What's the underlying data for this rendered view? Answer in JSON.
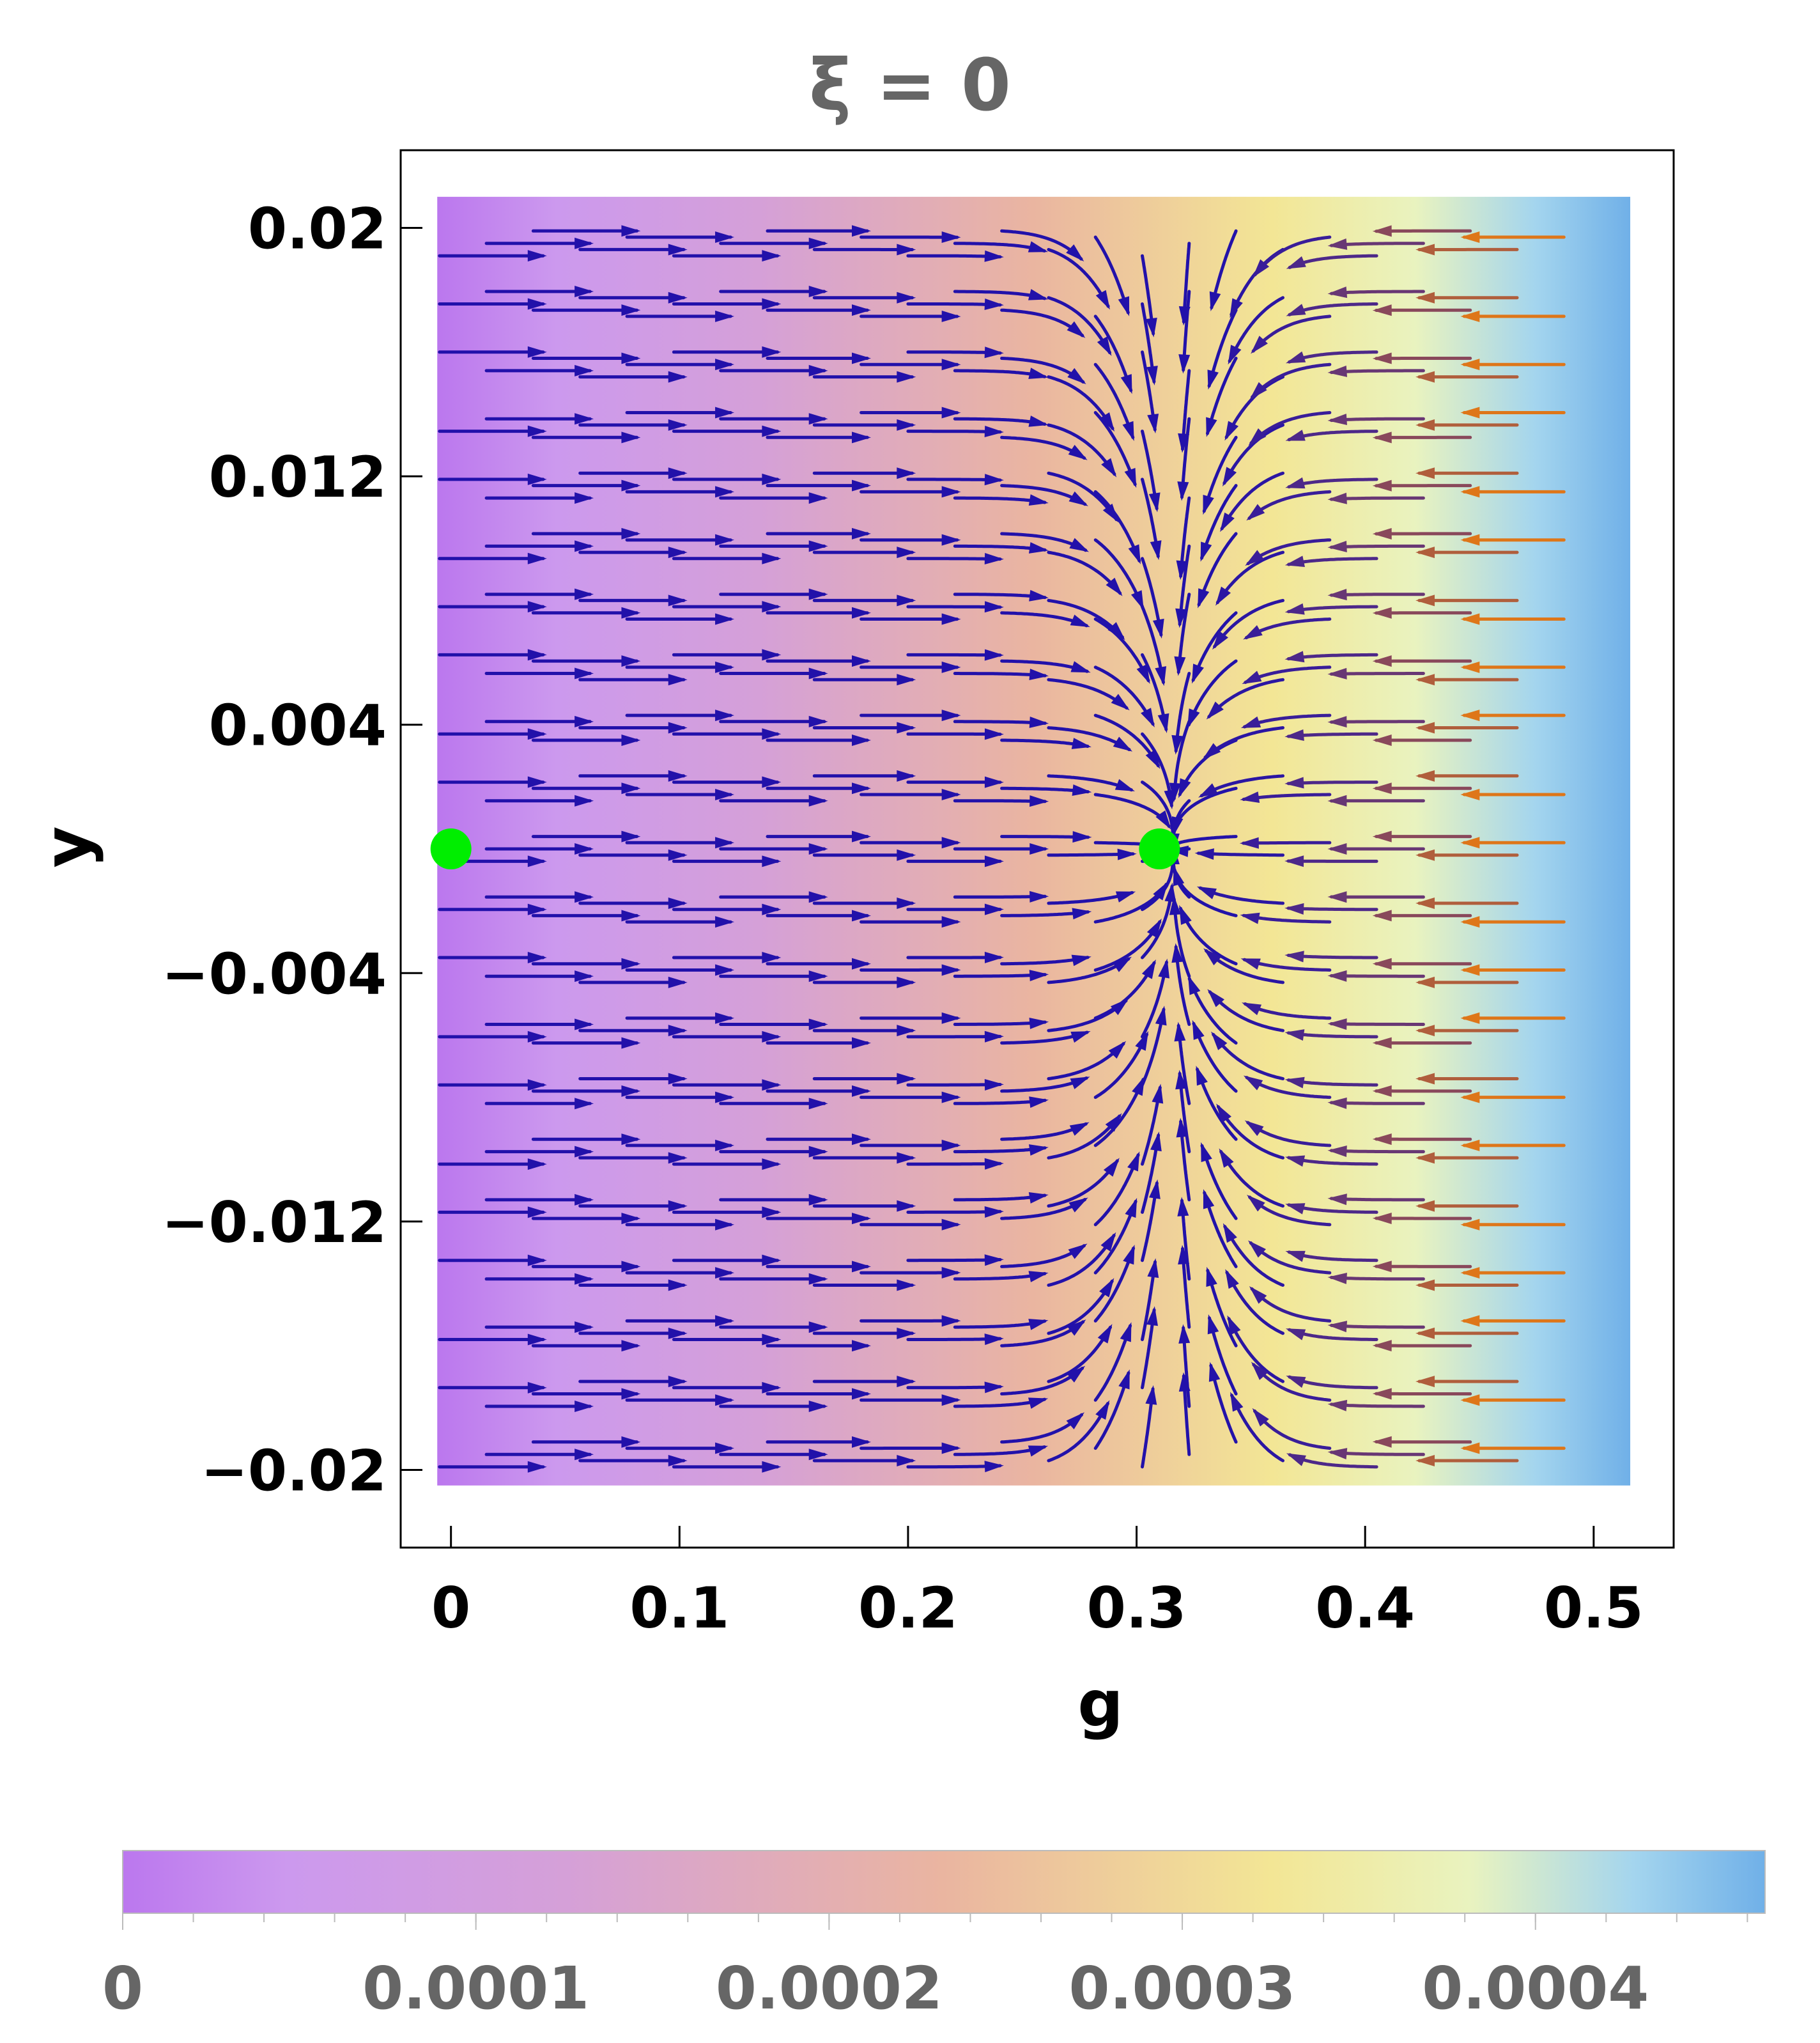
{
  "chart_data": {
    "type": "streamplot",
    "title": "ξ = 0",
    "xlabel": "g",
    "ylabel": "y",
    "xlim": [
      -0.022,
      0.535
    ],
    "ylim": [
      -0.0225,
      0.0225
    ],
    "data_region": {
      "g": [
        -0.006,
        0.516
      ],
      "y": [
        -0.0205,
        0.021
      ]
    },
    "xticks": [
      0,
      0.1,
      0.2,
      0.3,
      0.4,
      0.5
    ],
    "xtick_labels": [
      "0",
      "0.1",
      "0.2",
      "0.3",
      "0.4",
      "0.5"
    ],
    "yticks": [
      0.02,
      0.012,
      0.004,
      -0.004,
      -0.012,
      -0.02
    ],
    "ytick_labels": [
      "0.02",
      "0.012",
      "0.004",
      "−0.004",
      "−0.012",
      "−0.02"
    ],
    "grid": false,
    "fixed_points": [
      {
        "g": 0,
        "y": 0,
        "color": "#00ee00"
      },
      {
        "g": 0.31,
        "y": 0,
        "color": "#00ee00"
      }
    ],
    "flow_attractor_g": 0.316,
    "background_colormap": {
      "stops": [
        [
          0.0,
          "#bb77ee"
        ],
        [
          0.1,
          "#cc99ee"
        ],
        [
          0.27,
          "#d5a0d8"
        ],
        [
          0.5,
          "#eab5a0"
        ],
        [
          0.7,
          "#f3e695"
        ],
        [
          0.82,
          "#e9f3bf"
        ],
        [
          0.92,
          "#a4d5ee"
        ],
        [
          1.0,
          "#70b0e8"
        ]
      ]
    },
    "arrow_colors": {
      "slow": "#2211aa",
      "fast": "#ff8800"
    },
    "colorbar": {
      "range": [
        0,
        0.000465
      ],
      "ticks": [
        0,
        0.0001,
        0.0002,
        0.0003,
        0.0004
      ],
      "tick_labels": [
        "0",
        "0.0001",
        "0.0002",
        "0.0003",
        "0.0004"
      ]
    }
  }
}
